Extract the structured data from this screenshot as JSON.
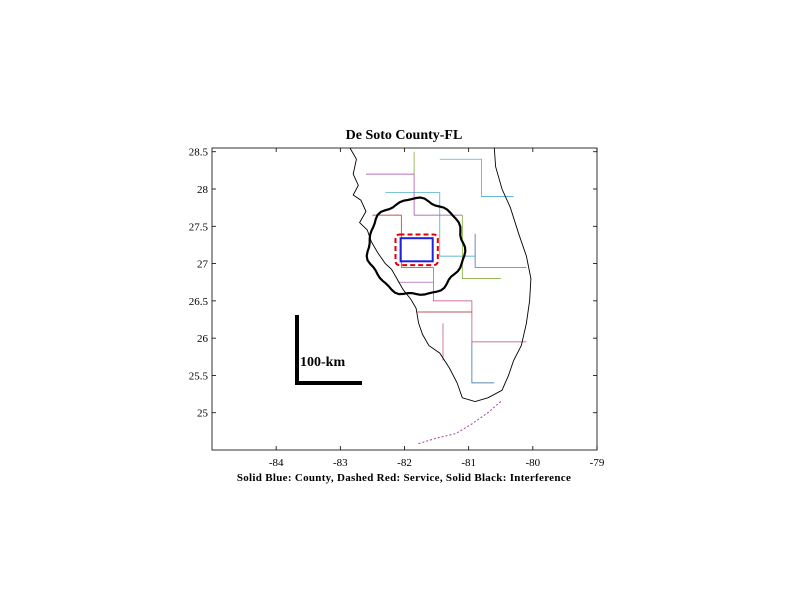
{
  "chart_data": {
    "type": "map",
    "title": "De Soto County-FL",
    "caption": "Solid Blue: County, Dashed Red: Service, Solid Black: Interference",
    "xlim": [
      -85.0,
      -79.0
    ],
    "ylim": [
      24.5,
      28.55
    ],
    "x_ticks": [
      -84,
      -83,
      -82,
      -81,
      -80,
      -79
    ],
    "y_ticks": [
      28.5,
      28,
      27.5,
      27,
      26.5,
      26,
      25.5,
      25
    ],
    "x_tick_labels": [
      "-84",
      "-83",
      "-82",
      "-81",
      "-80",
      "-79"
    ],
    "y_tick_labels": [
      "28.5",
      "28",
      "27.5",
      "27",
      "26.5",
      "26",
      "25.5",
      "25"
    ],
    "scale_bar_label": "100-km",
    "county_box": {
      "lon": [
        -82.06,
        -81.56
      ],
      "lat": [
        27.03,
        27.34
      ]
    },
    "service_box": {
      "lon": [
        -82.14,
        -81.48
      ],
      "lat": [
        26.98,
        27.39
      ]
    },
    "interference_center": {
      "lon": -81.82,
      "lat": 27.22
    },
    "colors": {
      "county": "#2020e0",
      "service": "#e00000",
      "interference": "#000000",
      "coast": "#000000",
      "borders": [
        "#a040a0",
        "#a02020",
        "#30a0c0",
        "#70a020",
        "#2060a0",
        "#c04080"
      ]
    }
  }
}
